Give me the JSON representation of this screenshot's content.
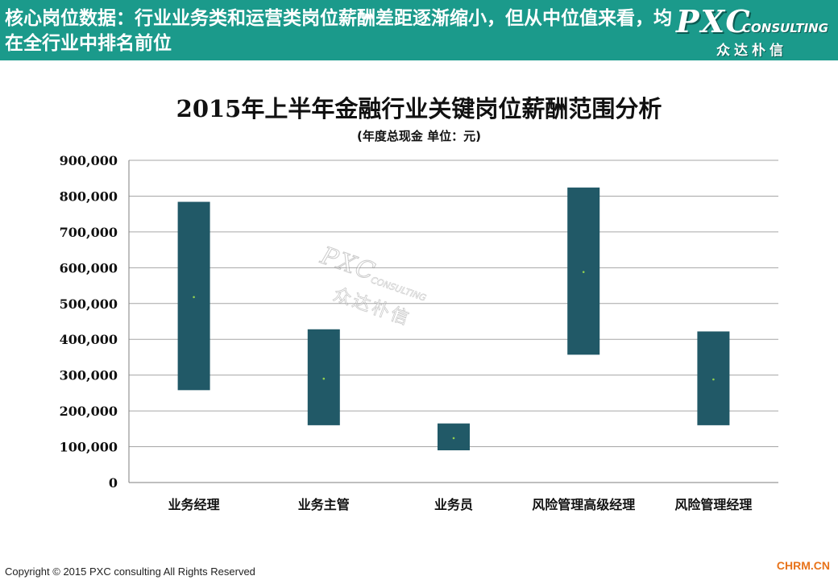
{
  "header": {
    "title": "核心岗位数据：行业业务类和运营类岗位薪酬差距逐渐缩小，但从中位值来看，均在全行业中排名前位",
    "logo_main": "PXC",
    "logo_sub": "CONSULTING",
    "logo_cn": "众达朴信"
  },
  "watermark": {
    "main": "PXC",
    "sub": "CONSULTING",
    "cn": "众达朴信"
  },
  "footer": {
    "copyright": "Copyright © 2015  PXC consulting All Rights Reserved",
    "source": "CHRM.CN"
  },
  "colors": {
    "header_bg": "#1b9a8b",
    "bar": "#215967",
    "median_dot": "#92d050",
    "gridline": "#a6a6a6"
  },
  "chart_data": {
    "type": "bar",
    "subtype": "floating-range",
    "title": "2015年上半年金融行业关键岗位薪酬范围分析",
    "subtitle": "(年度总现金  单位：元)",
    "xlabel": "",
    "ylabel": "",
    "ylim": [
      0,
      900000
    ],
    "yticks": [
      0,
      100000,
      200000,
      300000,
      400000,
      500000,
      600000,
      700000,
      800000,
      900000
    ],
    "ytick_labels": [
      "0",
      "100,000",
      "200,000",
      "300,000",
      "400,000",
      "500,000",
      "600,000",
      "700,000",
      "800,000",
      "900,000"
    ],
    "grid": true,
    "legend": "none",
    "categories": [
      "业务经理",
      "业务主管",
      "业务员",
      "风险管理高级经理",
      "风险管理经理"
    ],
    "low": [
      258000,
      160000,
      90000,
      357000,
      160000
    ],
    "high": [
      784000,
      428000,
      165000,
      824000,
      422000
    ],
    "median": [
      518000,
      290000,
      124000,
      588000,
      288000
    ]
  }
}
